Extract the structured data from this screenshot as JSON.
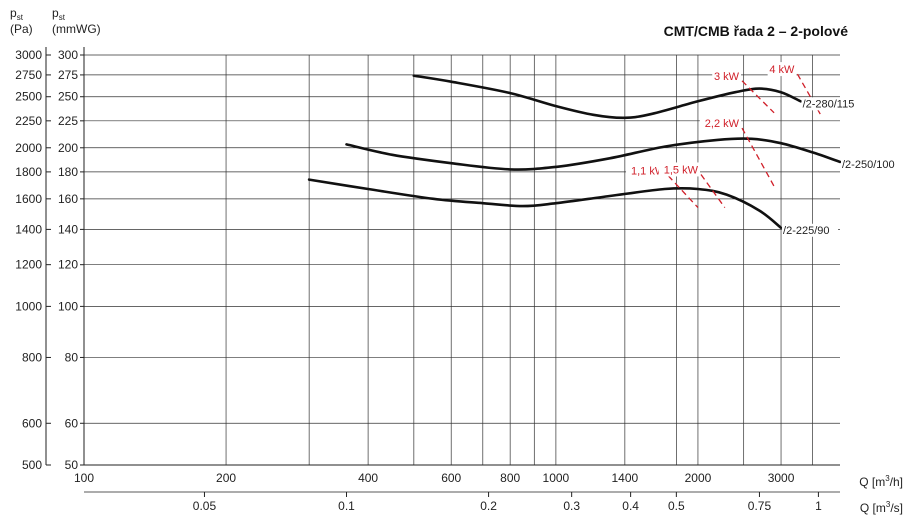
{
  "chart_data": {
    "type": "line",
    "title": "CMT/CMB řada 2 – 2-polové",
    "x_scale": "log",
    "y_scale": "log",
    "xlim": [
      100,
      4000
    ],
    "ylim": [
      50,
      300
    ],
    "ylim_pa": [
      500,
      3000
    ],
    "ylabel_pa": {
      "main": "p",
      "sub": "st",
      "unit": "(Pa)"
    },
    "ylabel_mm": {
      "main": "p",
      "sub": "st",
      "unit": "(mmWG)"
    },
    "xlabel_top": {
      "text": "Q [m",
      "sup": "3",
      "tail": "/h]"
    },
    "xlabel_bottom": {
      "text": "Q [m",
      "sup": "3",
      "tail": "/s]"
    },
    "x_ticks_m3h": [
      {
        "value": 100,
        "label": "100"
      },
      {
        "value": 200,
        "label": "200"
      },
      {
        "value": 400,
        "label": "400"
      },
      {
        "value": 600,
        "label": "600"
      },
      {
        "value": 800,
        "label": "800"
      },
      {
        "value": 1000,
        "label": "1000"
      },
      {
        "value": 1400,
        "label": "1400"
      },
      {
        "value": 2000,
        "label": "2000"
      },
      {
        "value": 3000,
        "label": "3000"
      }
    ],
    "x_grid_m3h": [
      100,
      200,
      300,
      400,
      500,
      600,
      700,
      800,
      900,
      1000,
      1400,
      1800,
      2000,
      2500,
      3000,
      3500
    ],
    "x_ticks_m3s": [
      {
        "value": 0.05,
        "label": "0.05"
      },
      {
        "value": 0.1,
        "label": "0.1"
      },
      {
        "value": 0.2,
        "label": "0.2"
      },
      {
        "value": 0.3,
        "label": "0.3"
      },
      {
        "value": 0.4,
        "label": "0.4"
      },
      {
        "value": 0.5,
        "label": "0.5"
      },
      {
        "value": 0.75,
        "label": "0.75"
      },
      {
        "value": 1,
        "label": "1"
      }
    ],
    "y_ticks_mm": [
      {
        "value": 50,
        "label": "50"
      },
      {
        "value": 60,
        "label": "60"
      },
      {
        "value": 80,
        "label": "80"
      },
      {
        "value": 100,
        "label": "100"
      },
      {
        "value": 120,
        "label": "120"
      },
      {
        "value": 140,
        "label": "140"
      },
      {
        "value": 160,
        "label": "160"
      },
      {
        "value": 180,
        "label": "180"
      },
      {
        "value": 200,
        "label": "200"
      },
      {
        "value": 225,
        "label": "225"
      },
      {
        "value": 250,
        "label": "250"
      },
      {
        "value": 275,
        "label": "275"
      },
      {
        "value": 300,
        "label": "300"
      }
    ],
    "y_ticks_pa": [
      {
        "value": 500,
        "label": "500"
      },
      {
        "value": 600,
        "label": "600"
      },
      {
        "value": 800,
        "label": "800"
      },
      {
        "value": 1000,
        "label": "1000"
      },
      {
        "value": 1200,
        "label": "1200"
      },
      {
        "value": 1400,
        "label": "1400"
      },
      {
        "value": 1600,
        "label": "1600"
      },
      {
        "value": 1800,
        "label": "1800"
      },
      {
        "value": 2000,
        "label": "2000"
      },
      {
        "value": 2250,
        "label": "2250"
      },
      {
        "value": 2500,
        "label": "2500"
      },
      {
        "value": 2750,
        "label": "2750"
      },
      {
        "value": 3000,
        "label": "3000"
      }
    ],
    "series": [
      {
        "name": "/2-280/115",
        "points": [
          [
            500,
            274
          ],
          [
            600,
            267
          ],
          [
            800,
            254
          ],
          [
            1000,
            240
          ],
          [
            1200,
            231
          ],
          [
            1400,
            228
          ],
          [
            1600,
            232
          ],
          [
            2000,
            245
          ],
          [
            2400,
            255
          ],
          [
            2700,
            259
          ],
          [
            3000,
            255
          ],
          [
            3300,
            245
          ]
        ]
      },
      {
        "name": "/2-250/100",
        "points": [
          [
            360,
            203
          ],
          [
            450,
            194
          ],
          [
            600,
            187
          ],
          [
            800,
            182
          ],
          [
            1000,
            184
          ],
          [
            1300,
            191
          ],
          [
            1700,
            201
          ],
          [
            2200,
            207
          ],
          [
            2600,
            208
          ],
          [
            3000,
            204
          ],
          [
            3500,
            196
          ],
          [
            4000,
            188
          ]
        ]
      },
      {
        "name": "/2-225/90",
        "points": [
          [
            300,
            174
          ],
          [
            400,
            167
          ],
          [
            550,
            160
          ],
          [
            700,
            157
          ],
          [
            850,
            155
          ],
          [
            1000,
            157
          ],
          [
            1300,
            162
          ],
          [
            1700,
            167
          ],
          [
            2000,
            167
          ],
          [
            2300,
            163
          ],
          [
            2700,
            152
          ],
          [
            3000,
            141
          ]
        ]
      }
    ],
    "power_annotations": [
      {
        "label": "1,1 kW",
        "line": [
          [
            1730,
            177
          ],
          [
            2000,
            154
          ]
        ]
      },
      {
        "label": "1,5 kW",
        "line": [
          [
            2030,
            178
          ],
          [
            2280,
            154
          ]
        ]
      },
      {
        "label": "2,2 kW",
        "line": [
          [
            2480,
            218
          ],
          [
            2900,
            169
          ]
        ]
      },
      {
        "label": "3 kW",
        "line": [
          [
            2480,
            268
          ],
          [
            2900,
            233
          ]
        ]
      },
      {
        "label": "4 kW",
        "line": [
          [
            3250,
            276
          ],
          [
            3650,
            230
          ]
        ]
      }
    ]
  }
}
